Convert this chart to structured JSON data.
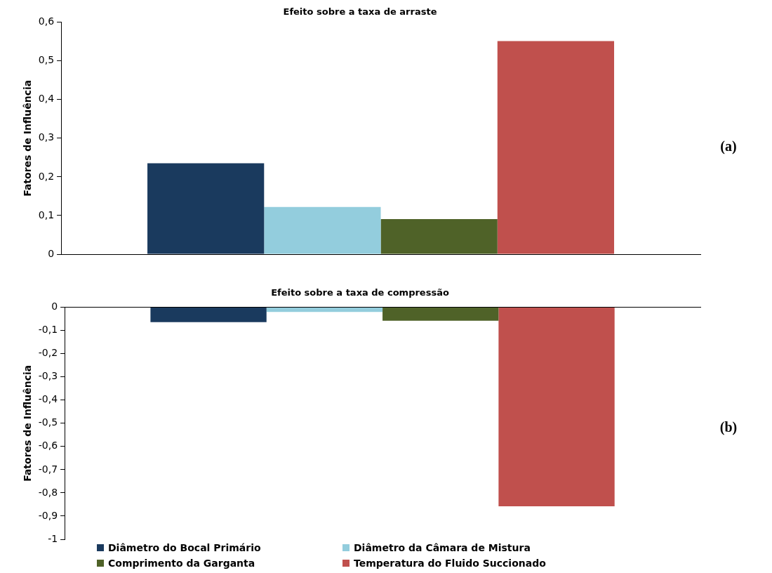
{
  "chart_data": [
    {
      "type": "bar",
      "title": "Efeito sobre a taxa de arraste",
      "ylabel": "Fatores de Influência",
      "categories": [
        null
      ],
      "tick_labels": "y",
      "ylim": [
        0,
        0.6
      ],
      "yticks": [
        {
          "value": 0,
          "label": "0"
        },
        {
          "value": 0.1,
          "label": "0,1"
        },
        {
          "value": 0.2,
          "label": "0,2"
        },
        {
          "value": 0.3,
          "label": "0,3"
        },
        {
          "value": 0.4,
          "label": "0,4"
        },
        {
          "value": 0.5,
          "label": "0,5"
        },
        {
          "value": 0.6,
          "label": "0,6"
        }
      ],
      "annotations": [
        "(a)"
      ],
      "series": [
        {
          "color": "#1a3a5e",
          "values": [
            0.235
          ]
        },
        {
          "color": "#93cddd",
          "values": [
            0.122
          ]
        },
        {
          "color": "#4f6228",
          "values": [
            0.091
          ]
        },
        {
          "color": "#c0504d",
          "values": [
            0.551
          ]
        }
      ]
    },
    {
      "type": "bar",
      "title": "Efeito sobre a taxa de compressão",
      "ylabel": "Fatores de Influência",
      "categories": [
        null
      ],
      "tick_labels": "y",
      "legend": "bottom",
      "ylim": [
        -1,
        0
      ],
      "yticks": [
        {
          "value": -1,
          "label": "-1"
        },
        {
          "value": -0.9,
          "label": "-0,9"
        },
        {
          "value": -0.8,
          "label": "-0,8"
        },
        {
          "value": -0.7,
          "label": "-0,7"
        },
        {
          "value": -0.6,
          "label": "-0,6"
        },
        {
          "value": -0.5,
          "label": "-0,5"
        },
        {
          "value": -0.4,
          "label": "-0,4"
        },
        {
          "value": -0.3,
          "label": "-0,3"
        },
        {
          "value": -0.2,
          "label": "-0,2"
        },
        {
          "value": -0.1,
          "label": "-0,1"
        },
        {
          "value": 0,
          "label": "0"
        }
      ],
      "annotations": [
        "(b)"
      ],
      "series": [
        {
          "name": "Diâmetro do Bocal Primário",
          "color": "#1a3a5e",
          "values": [
            -0.064
          ]
        },
        {
          "name": "Diâmetro da Câmara de Mistura",
          "color": "#93cddd",
          "values": [
            -0.02
          ]
        },
        {
          "name": "Comprimento da Garganta",
          "color": "#4f6228",
          "values": [
            -0.058
          ]
        },
        {
          "name": "Temperatura do Fluido Succionado",
          "color": "#c0504d",
          "values": [
            -0.858
          ]
        }
      ]
    }
  ]
}
